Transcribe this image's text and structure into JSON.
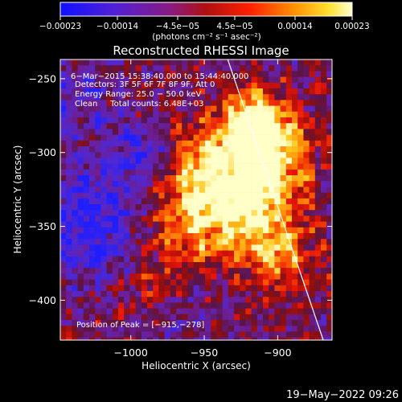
{
  "chart_data": {
    "type": "heatmap",
    "title": "Reconstructed RHESSI Image",
    "xlabel": "Heliocentric X (arcsec)",
    "ylabel": "Heliocentric Y (arcsec)",
    "xlim": [
      -1048,
      -863
    ],
    "ylim": [
      -427,
      -237
    ],
    "x_ticks": [
      -1000,
      -950,
      -900
    ],
    "x_tick_labels": [
      "−1000",
      "−950",
      "−900"
    ],
    "y_ticks": [
      -250,
      -300,
      -350,
      -400
    ],
    "y_tick_labels": [
      "−250",
      "−300",
      "−350",
      "−400"
    ],
    "colorbar": {
      "range": [
        -0.00023,
        0.00023
      ],
      "ticks": [
        -0.00023,
        -0.00014,
        -4.5e-05,
        4.5e-05,
        0.00014,
        0.00023
      ],
      "tick_labels": [
        "−0.00023",
        "−0.00014",
        "−4.5e−05",
        "4.5e−05",
        "0.00014",
        "0.00023"
      ],
      "label": "(photons cm⁻² s⁻¹ asec⁻²)",
      "colors": [
        "#1010ff",
        "#7020c0",
        "#a02020",
        "#e01010",
        "#ff7000",
        "#ffd020",
        "#ffffc0"
      ]
    },
    "info_lines": [
      "6−Mar−2015 15:38:40.000 to 15:44:40.000",
      "Detectors: 3F 5F 6F 7F 8F 9F, Att 0",
      "Energy Range: 25.0 − 50.0 keV",
      "Clean     Total counts: 6.48E+03"
    ],
    "peak_label": "Position of Peak = [−915,−278]",
    "peak_position": [
      -915,
      -278
    ],
    "limb_line": [
      [
        -934,
        -237
      ],
      [
        -869,
        -427
      ]
    ],
    "emission_regions": [
      {
        "x": -915,
        "y": -278,
        "level": 1.0,
        "sigma": 14
      },
      {
        "x": -905,
        "y": -300,
        "level": 0.85,
        "sigma": 18
      },
      {
        "x": -920,
        "y": -335,
        "level": 0.85,
        "sigma": 22
      },
      {
        "x": -948,
        "y": -310,
        "level": 0.7,
        "sigma": 22
      },
      {
        "x": -965,
        "y": -350,
        "level": 0.6,
        "sigma": 20
      },
      {
        "x": -900,
        "y": -370,
        "level": 0.55,
        "sigma": 18
      },
      {
        "x": -980,
        "y": -395,
        "level": 0.45,
        "sigma": 18
      }
    ],
    "negative_regions": [
      {
        "x": -1025,
        "y": -345,
        "level": -0.55,
        "sigma": 30
      },
      {
        "x": -990,
        "y": -300,
        "level": -0.45,
        "sigma": 14
      },
      {
        "x": -970,
        "y": -405,
        "level": -0.4,
        "sigma": 18
      },
      {
        "x": -1035,
        "y": -260,
        "level": -0.3,
        "sigma": 20
      }
    ]
  },
  "timestamp": "19−May−2022 09:26"
}
